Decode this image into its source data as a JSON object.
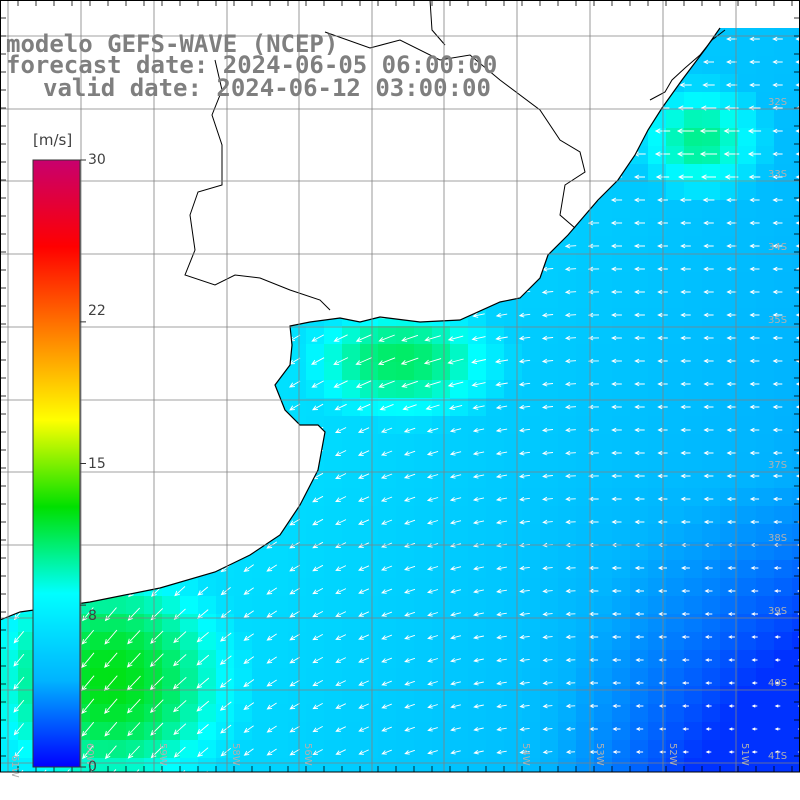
{
  "header": {
    "model_line": "modelo GEFS-WAVE (NCEP)",
    "forecast_line": "forecast date: 2024-06-05 06:00:00",
    "valid_line": "valid date: 2024-06-12 03:00:00"
  },
  "colorbar": {
    "unit": "[m/s]",
    "min": 0,
    "max": 30,
    "ticks": [
      {
        "value": 30,
        "label": "30"
      },
      {
        "value": 22,
        "label": "22"
      },
      {
        "value": 15,
        "label": "15"
      },
      {
        "value": 8,
        "label": "8"
      },
      {
        "value": 0,
        "label": "0"
      }
    ],
    "colors": [
      "#0000ff",
      "#00b4ff",
      "#00ffff",
      "#00e000",
      "#ffff00",
      "#ff8000",
      "#ff0000",
      "#c8006e"
    ]
  },
  "map": {
    "variable": "wind speed",
    "units": "m/s",
    "lon_range": [
      -62,
      -50
    ],
    "lat_range": [
      -42,
      -30
    ],
    "lat_labels": [
      "32S",
      "33S",
      "34S",
      "35S",
      "37S",
      "38S",
      "39S",
      "40S",
      "41S"
    ],
    "lon_labels": [
      "61W",
      "60W",
      "59W",
      "58W",
      "56W",
      "54W",
      "53W",
      "52W",
      "51W"
    ],
    "land_color": "#ffffff",
    "coast_color": "#000000",
    "grid_color": "#808080",
    "arrow_color": "#ffffff",
    "general_wind_direction": "from the northeast (arrows toward SW/W)"
  }
}
